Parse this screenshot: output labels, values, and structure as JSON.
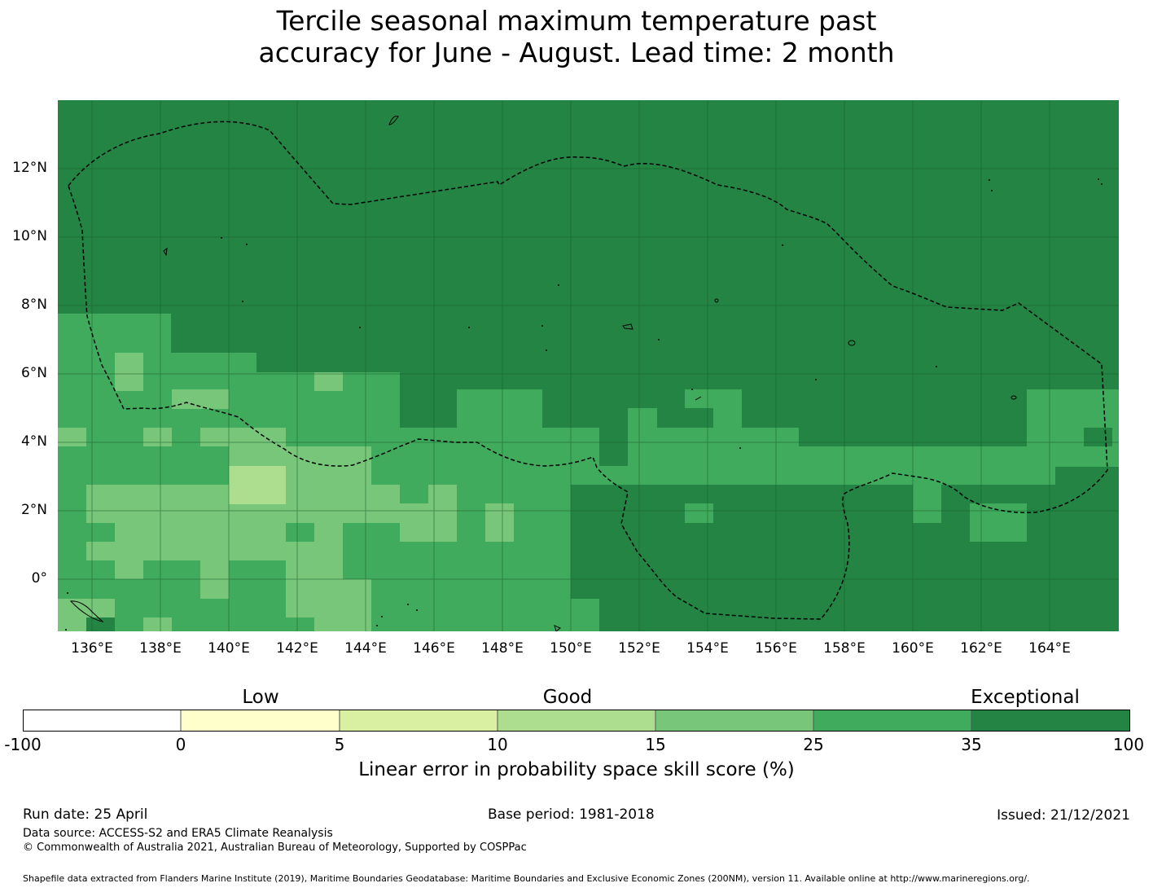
{
  "title": {
    "line1": "Tercile seasonal maximum temperature past",
    "line2": "accuracy for June - August. Lead time: 2 month"
  },
  "map": {
    "lat_range": [
      -1.5,
      14.0
    ],
    "lon_range": [
      135.0,
      166.0
    ],
    "lat_ticks": [
      {
        "value": 12,
        "label": "12°N"
      },
      {
        "value": 10,
        "label": "10°N"
      },
      {
        "value": 8,
        "label": "8°N"
      },
      {
        "value": 6,
        "label": "6°N"
      },
      {
        "value": 4,
        "label": "4°N"
      },
      {
        "value": 2,
        "label": "2°N"
      },
      {
        "value": 0,
        "label": "0°"
      }
    ],
    "lon_ticks": [
      {
        "value": 136,
        "label": "136°E"
      },
      {
        "value": 138,
        "label": "138°E"
      },
      {
        "value": 140,
        "label": "140°E"
      },
      {
        "value": 142,
        "label": "142°E"
      },
      {
        "value": 144,
        "label": "144°E"
      },
      {
        "value": 146,
        "label": "146°E"
      },
      {
        "value": 148,
        "label": "148°E"
      },
      {
        "value": 150,
        "label": "150°E"
      },
      {
        "value": 152,
        "label": "152°E"
      },
      {
        "value": 154,
        "label": "154°E"
      },
      {
        "value": 156,
        "label": "156°E"
      },
      {
        "value": 158,
        "label": "158°E"
      },
      {
        "value": 160,
        "label": "160°E"
      },
      {
        "value": 162,
        "label": "162°E"
      },
      {
        "value": 164,
        "label": "164°E"
      }
    ],
    "grid_lines": true,
    "eez_boundary_style": "dashed"
  },
  "colorbar": {
    "categories": [
      {
        "label": "Low",
        "at": 2.5
      },
      {
        "label": "Good",
        "at": 12.5
      },
      {
        "label": "Exceptional",
        "at": 67.5
      }
    ],
    "tick_labels": [
      "-100",
      "0",
      "5",
      "10",
      "15",
      "25",
      "35",
      "100"
    ],
    "bins": [
      {
        "from": -100,
        "to": 0,
        "color": "#ffffff"
      },
      {
        "from": 0,
        "to": 5,
        "color": "#ffffcc"
      },
      {
        "from": 5,
        "to": 10,
        "color": "#d9f0a3"
      },
      {
        "from": 10,
        "to": 15,
        "color": "#addd8e"
      },
      {
        "from": 15,
        "to": 25,
        "color": "#78c679"
      },
      {
        "from": 25,
        "to": 35,
        "color": "#41ab5d"
      },
      {
        "from": 35,
        "to": 100,
        "color": "#238443"
      }
    ],
    "title": "Linear error in probability space skill score (%)"
  },
  "footer": {
    "run_date": "Run date: 25 April",
    "base_period": "Base period: 1981-2018",
    "issued": "Issued: 21/12/2021",
    "data_source": "Data source: ACCESS-S2 and ERA5 Climate Reanalysis",
    "copyright": "© Commonwealth of Australia 2021, Australian Bureau of Meteorology, Supported by COSPPac",
    "shapefile": "Shapefile data extracted from Flanders Marine Institute (2019), Maritime Boundaries Geodatabase: Maritime Boundaries and Exclusive Economic Zones (200NM), version 11. Available online at http://www.marineregions.org/."
  }
}
